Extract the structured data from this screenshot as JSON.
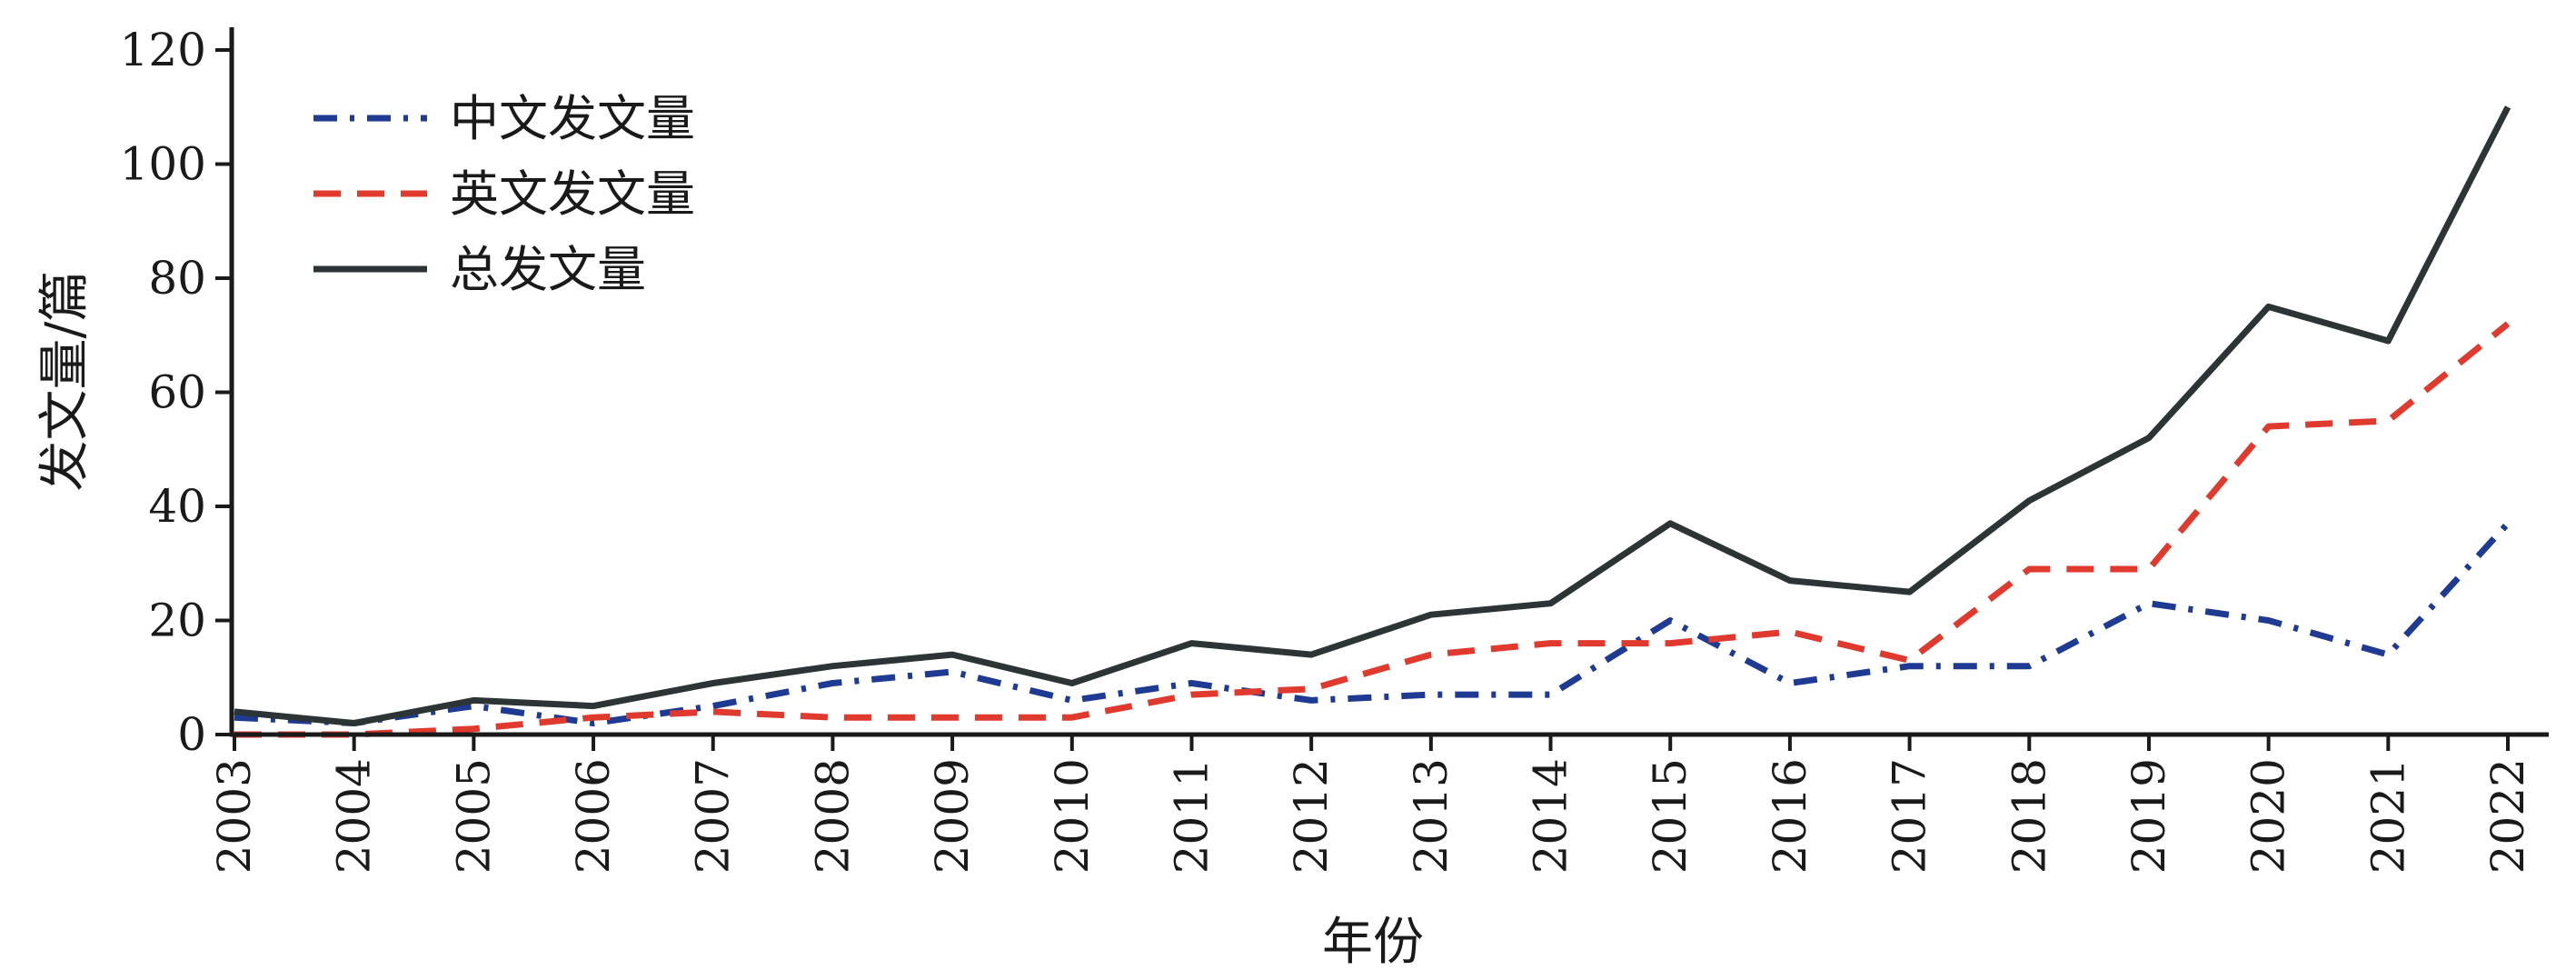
{
  "chart_data": {
    "type": "line",
    "xlabel": "年份",
    "ylabel": "发文量/篇",
    "ylim": [
      0,
      120
    ],
    "yticks": [
      0,
      20,
      40,
      60,
      80,
      100,
      120
    ],
    "categories": [
      "2003",
      "2004",
      "2005",
      "2006",
      "2007",
      "2008",
      "2009",
      "2010",
      "2011",
      "2012",
      "2013",
      "2014",
      "2015",
      "2016",
      "2017",
      "2018",
      "2019",
      "2020",
      "2021",
      "2022"
    ],
    "grid": false,
    "legend_position": "top-left",
    "series": [
      {
        "name": "中文发文量",
        "color": "#1f3a93",
        "style": "dashdot",
        "values": [
          3,
          2,
          5,
          2,
          5,
          9,
          11,
          6,
          9,
          6,
          7,
          7,
          20,
          9,
          12,
          12,
          23,
          20,
          14,
          37
        ]
      },
      {
        "name": "英文发文量",
        "color": "#e03a2f",
        "style": "dashed",
        "values": [
          0,
          0,
          1,
          3,
          4,
          3,
          3,
          3,
          7,
          8,
          14,
          16,
          16,
          18,
          13,
          29,
          29,
          54,
          55,
          72
        ]
      },
      {
        "name": "总发文量",
        "color": "#2d3436",
        "style": "solid",
        "values": [
          4,
          2,
          6,
          5,
          9,
          12,
          14,
          9,
          16,
          14,
          21,
          23,
          37,
          27,
          25,
          41,
          52,
          75,
          69,
          110
        ]
      }
    ]
  }
}
